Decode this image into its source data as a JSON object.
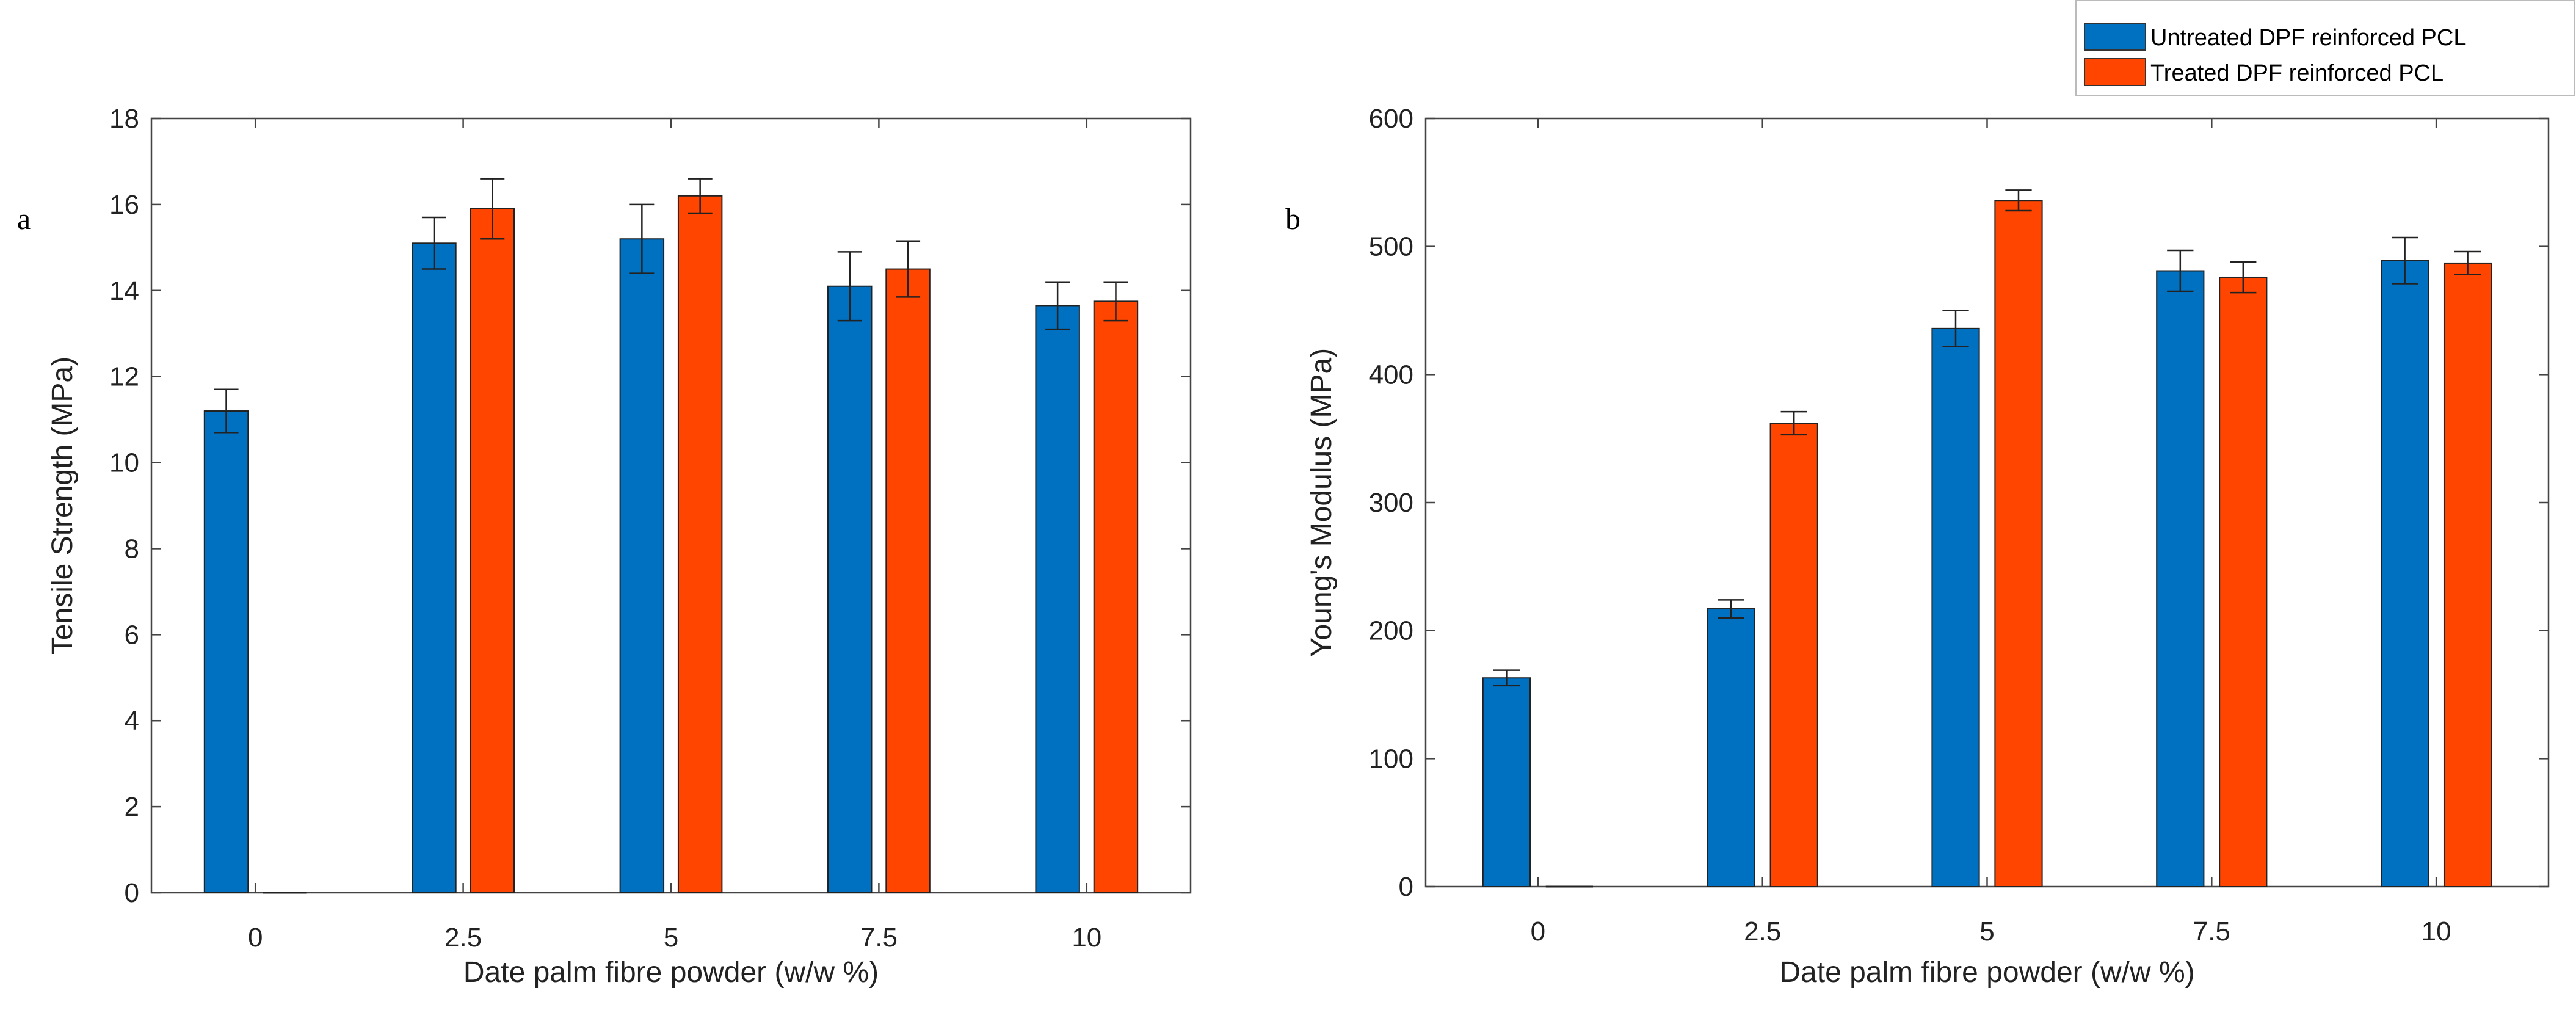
{
  "colors": {
    "untreated": "#0070c0",
    "treated": "#ff4500",
    "axis": "#444444"
  },
  "legend": [
    {
      "label": "Untreated DPF reinforced PCL",
      "color": "#0070c0"
    },
    {
      "label": "Treated DPF reinforced PCL",
      "color": "#ff4500"
    }
  ],
  "chart_data": [
    {
      "type": "bar",
      "panel_label": "a",
      "title": "",
      "xlabel": "Date palm fibre powder (w/w %)",
      "ylabel": "Tensile Strength (MPa)",
      "categories": [
        "0",
        "2.5",
        "5",
        "7.5",
        "10"
      ],
      "ylim": [
        0,
        18
      ],
      "yticks": [
        "0",
        "2",
        "4",
        "6",
        "8",
        "10",
        "12",
        "14",
        "16",
        "18"
      ],
      "series": [
        {
          "name": "Untreated DPF reinforced PCL",
          "values": [
            11.2,
            15.1,
            15.2,
            14.1,
            13.65
          ],
          "errors": [
            0.5,
            0.6,
            0.8,
            0.8,
            0.55
          ]
        },
        {
          "name": "Treated DPF reinforced PCL",
          "values": [
            0,
            15.9,
            16.2,
            14.5,
            13.75
          ],
          "errors": [
            0,
            0.7,
            0.4,
            0.65,
            0.45
          ]
        }
      ]
    },
    {
      "type": "bar",
      "panel_label": "b",
      "title": "",
      "xlabel": "Date palm fibre powder (w/w %)",
      "ylabel": "Young's Modulus (MPa)",
      "categories": [
        "0",
        "2.5",
        "5",
        "7.5",
        "10"
      ],
      "ylim": [
        0,
        600
      ],
      "yticks": [
        "0",
        "100",
        "200",
        "300",
        "400",
        "500",
        "600"
      ],
      "series": [
        {
          "name": "Untreated DPF reinforced PCL",
          "values": [
            163,
            217,
            436,
            481,
            489
          ],
          "errors": [
            6,
            7,
            14,
            16,
            18
          ]
        },
        {
          "name": "Treated DPF reinforced PCL",
          "values": [
            0,
            362,
            536,
            476,
            487
          ],
          "errors": [
            0,
            9,
            8,
            12,
            9
          ]
        }
      ]
    }
  ]
}
